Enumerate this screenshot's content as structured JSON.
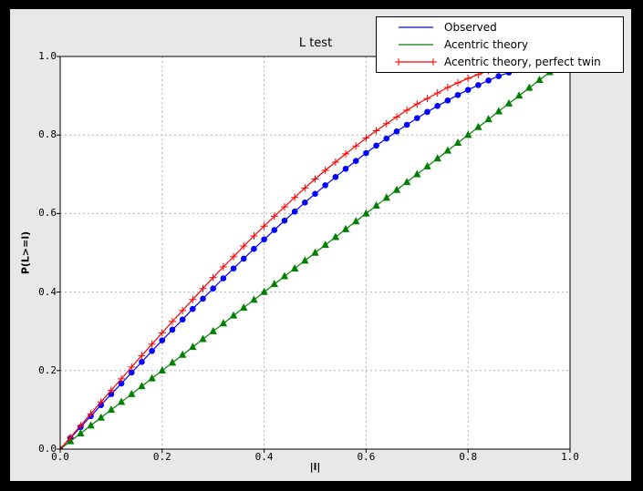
{
  "window": {
    "frame_color": "#000000",
    "figure_bg": "#e8e8e8",
    "plot_bg": "#ffffff",
    "grid_color": "#b0b0b0"
  },
  "chart_data": {
    "type": "line",
    "title": "L test",
    "xlabel": "|l|",
    "ylabel": "P(L>=l)",
    "xlim": [
      0,
      1
    ],
    "ylim": [
      0,
      1
    ],
    "grid": true,
    "legend_position": "upper right",
    "x_ticks": [
      "0.0",
      "0.2",
      "0.4",
      "0.6",
      "0.8",
      "1.0"
    ],
    "y_ticks": [
      "0.0",
      "0.2",
      "0.4",
      "0.6",
      "0.8",
      "1.0"
    ],
    "x": [
      0,
      0.02,
      0.04,
      0.06,
      0.08,
      0.1,
      0.12,
      0.14,
      0.16,
      0.18,
      0.2,
      0.22,
      0.24,
      0.26,
      0.28,
      0.3,
      0.32,
      0.34,
      0.36,
      0.38,
      0.4,
      0.42,
      0.44,
      0.46,
      0.48,
      0.5,
      0.52,
      0.54,
      0.56,
      0.58,
      0.6,
      0.62,
      0.64,
      0.66,
      0.68,
      0.7,
      0.72,
      0.74,
      0.76,
      0.78,
      0.8,
      0.82,
      0.84,
      0.86,
      0.88,
      0.9,
      0.92,
      0.94,
      0.96,
      0.98,
      1
    ],
    "series": [
      {
        "name": "Observed",
        "color": "#0000ff",
        "marker": "circle",
        "y": [
          0,
          0.028,
          0.056,
          0.084,
          0.112,
          0.14,
          0.167,
          0.195,
          0.222,
          0.25,
          0.277,
          0.304,
          0.33,
          0.357,
          0.383,
          0.409,
          0.435,
          0.46,
          0.485,
          0.51,
          0.534,
          0.558,
          0.582,
          0.605,
          0.628,
          0.65,
          0.672,
          0.693,
          0.714,
          0.734,
          0.754,
          0.773,
          0.791,
          0.809,
          0.826,
          0.843,
          0.859,
          0.874,
          0.888,
          0.902,
          0.915,
          0.927,
          0.939,
          0.95,
          0.959,
          0.968,
          0.977,
          0.984,
          0.99,
          0.995,
          1
        ]
      },
      {
        "name": "Acentric theory",
        "color": "#008000",
        "marker": "triangle-up",
        "y": [
          0,
          0.02,
          0.04,
          0.06,
          0.08,
          0.1,
          0.12,
          0.14,
          0.16,
          0.18,
          0.2,
          0.22,
          0.24,
          0.26,
          0.28,
          0.3,
          0.32,
          0.34,
          0.36,
          0.38,
          0.4,
          0.42,
          0.44,
          0.46,
          0.48,
          0.5,
          0.52,
          0.54,
          0.56,
          0.58,
          0.6,
          0.62,
          0.64,
          0.66,
          0.68,
          0.7,
          0.72,
          0.74,
          0.76,
          0.78,
          0.8,
          0.82,
          0.84,
          0.86,
          0.88,
          0.9,
          0.92,
          0.94,
          0.96,
          0.98,
          1
        ]
      },
      {
        "name": "Acentric theory, perfect twin",
        "color": "#ff0000",
        "marker": "plus",
        "y": [
          0,
          0.03,
          0.06,
          0.09,
          0.12,
          0.15,
          0.179,
          0.209,
          0.238,
          0.267,
          0.296,
          0.325,
          0.353,
          0.381,
          0.409,
          0.437,
          0.464,
          0.49,
          0.517,
          0.543,
          0.568,
          0.593,
          0.617,
          0.641,
          0.665,
          0.688,
          0.71,
          0.731,
          0.752,
          0.772,
          0.792,
          0.811,
          0.829,
          0.846,
          0.863,
          0.879,
          0.893,
          0.907,
          0.921,
          0.933,
          0.944,
          0.954,
          0.964,
          0.972,
          0.979,
          0.986,
          0.991,
          0.995,
          0.998,
          0.999,
          1
        ]
      }
    ]
  }
}
